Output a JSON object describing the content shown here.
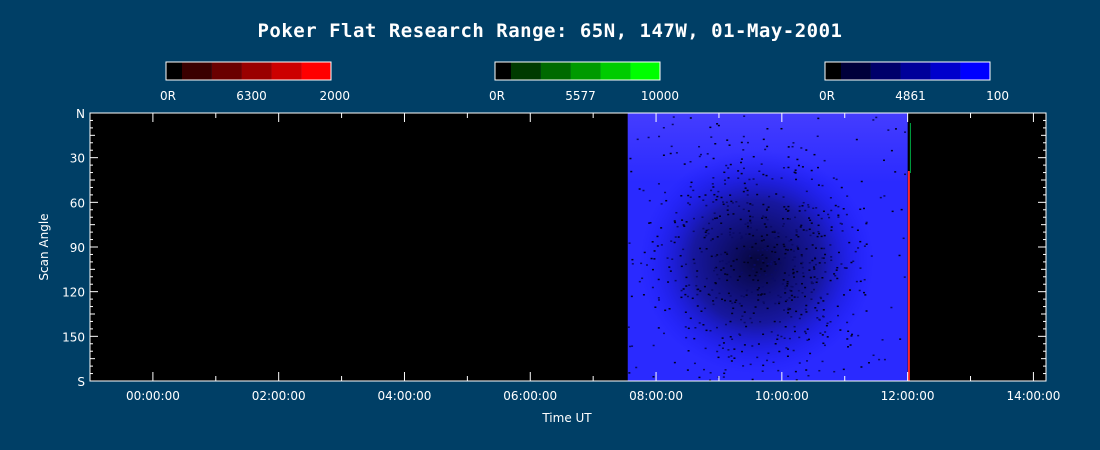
{
  "chart_data": {
    "type": "heatmap",
    "title": "Poker Flat Research Range: 65N, 147W, 01-May-2001",
    "xlabel": "Time UT",
    "ylabel": "Scan Angle",
    "x_ticks": [
      "00:00:00",
      "02:00:00",
      "04:00:00",
      "06:00:00",
      "08:00:00",
      "10:00:00",
      "12:00:00",
      "14:00:00"
    ],
    "x_tick_hours": [
      0,
      2,
      4,
      6,
      8,
      10,
      12,
      14
    ],
    "xlim_hours": [
      -1.0,
      14.2
    ],
    "y_ticks": [
      "N",
      "30",
      "60",
      "90",
      "120",
      "150",
      "S"
    ],
    "y_tick_values": [
      0,
      30,
      60,
      90,
      120,
      150,
      180
    ],
    "ylim": [
      0,
      180
    ],
    "colorbars": [
      {
        "name": "6300",
        "min_label": "0R",
        "mid_label": "6300",
        "max_label": "2000",
        "colors": [
          "#000000",
          "#3a0000",
          "#6a0000",
          "#9a0000",
          "#cc0000",
          "#ff0000"
        ]
      },
      {
        "name": "5577",
        "min_label": "0R",
        "mid_label": "5577",
        "max_label": "10000",
        "colors": [
          "#000000",
          "#003a00",
          "#006a00",
          "#009a00",
          "#00cc00",
          "#00ff00"
        ]
      },
      {
        "name": "4861",
        "min_label": "0R",
        "mid_label": "4861",
        "max_label": "100",
        "colors": [
          "#000000",
          "#00003a",
          "#00006a",
          "#00009a",
          "#0000cc",
          "#0000ff"
        ]
      }
    ],
    "data_window": {
      "start_hour": 7.55,
      "end_hour": 12.0,
      "dominant_channel": "4861",
      "color": "#2a2aff",
      "red_edge_hour": 12.02,
      "dark_core_center_hour": 9.6,
      "dark_core_center_angle": 100
    },
    "background_color": "#003f66",
    "plot_color": "#000000"
  }
}
